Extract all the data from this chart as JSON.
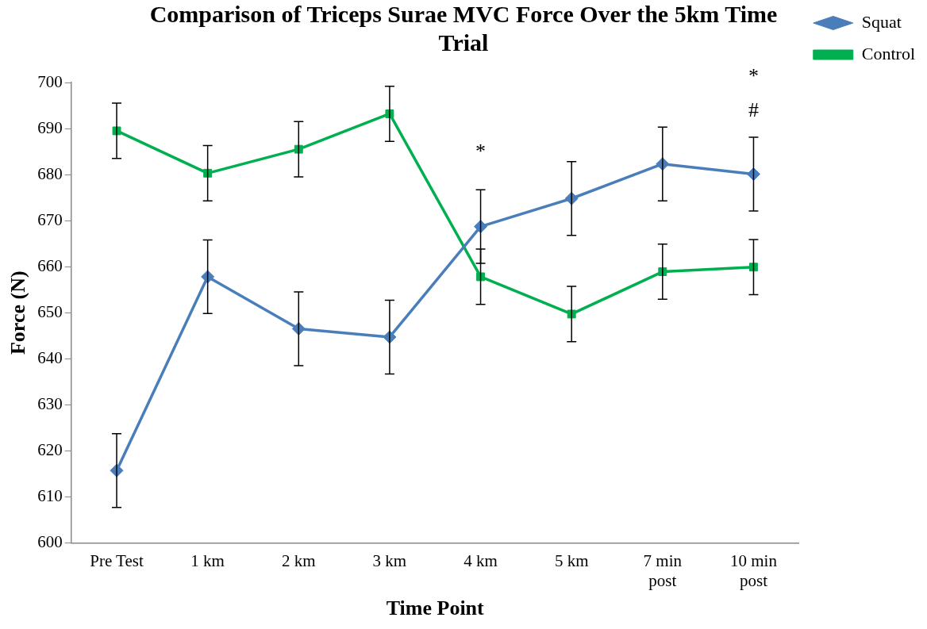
{
  "chart_data": {
    "type": "line",
    "title": "Comparison of Triceps Surae MVC Force Over the 5km Time Trial",
    "xlabel": "Time Point",
    "ylabel": "Force (N)",
    "categories": [
      "Pre Test",
      "1 km",
      "2 km",
      "3 km",
      "4 km",
      "5 km",
      "7 min post",
      "10 min post"
    ],
    "series": [
      {
        "name": "Squat",
        "color": "#4a7ebb",
        "marker": "diamond",
        "values": [
          615.7,
          657.8,
          646.5,
          644.7,
          668.7,
          674.8,
          682.3,
          680.1
        ],
        "errors": [
          8,
          8,
          8,
          8,
          8,
          8,
          8,
          8
        ]
      },
      {
        "name": "Control",
        "color": "#00b050",
        "marker": "square",
        "values": [
          689.5,
          680.3,
          685.5,
          693.2,
          657.8,
          649.7,
          658.9,
          659.9
        ],
        "errors": [
          6,
          6,
          6,
          6,
          6,
          6,
          6,
          6
        ]
      }
    ],
    "ylim": [
      600,
      700
    ],
    "yticks": [
      600,
      610,
      620,
      630,
      640,
      650,
      660,
      670,
      680,
      690,
      700
    ],
    "grid": false,
    "legend": "right",
    "line_style": "solid",
    "annotations": [
      "*",
      "#",
      "*"
    ]
  }
}
